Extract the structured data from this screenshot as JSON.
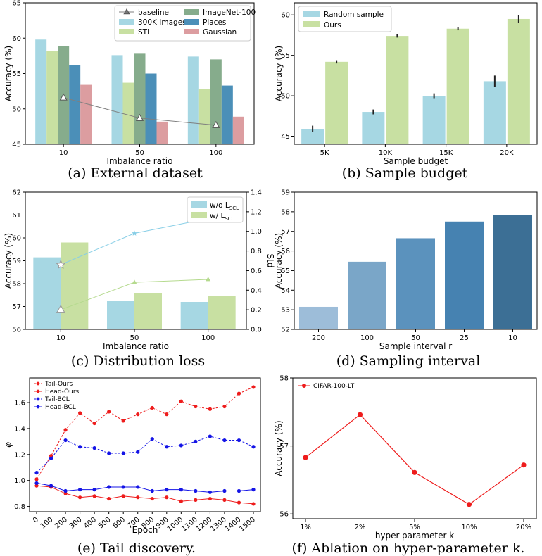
{
  "figure": {
    "captions": [
      "(a) External dataset",
      "(b) Sample budget",
      "(c) Distribution loss",
      "(d) Sampling interval",
      "(e) Tail discovery.",
      "(f) Ablation on hyper-parameter k."
    ]
  },
  "chart_data": [
    {
      "id": "a",
      "type": "bar",
      "xlabel": "Imbalance ratio",
      "ylabel": "Accuracy (%)",
      "categories": [
        "10",
        "50",
        "100"
      ],
      "ylim": [
        45,
        65
      ],
      "yticks": [
        45,
        50,
        55,
        60,
        65
      ],
      "legend_position": "top-right",
      "series": [
        {
          "name": "300K Images",
          "color": "#a6d7e3",
          "values": [
            59.8,
            57.6,
            57.4
          ]
        },
        {
          "name": "STL",
          "color": "#c8e0a2",
          "values": [
            58.2,
            53.7,
            52.8
          ]
        },
        {
          "name": "ImageNet-100",
          "color": "#86ac8c",
          "values": [
            58.9,
            57.8,
            57.0
          ]
        },
        {
          "name": "Places",
          "color": "#4b8fb8",
          "values": [
            56.2,
            55.0,
            53.3
          ]
        },
        {
          "name": "Gaussian",
          "color": "#dc9da0",
          "values": [
            53.4,
            48.2,
            48.9
          ]
        }
      ],
      "line": {
        "name": "baseline",
        "color": "#7f7f7f",
        "marker": "triangle",
        "values": [
          51.6,
          48.7,
          47.7
        ]
      }
    },
    {
      "id": "b",
      "type": "bar",
      "xlabel": "Sample budget",
      "ylabel": "Accuracy (%)",
      "categories": [
        "5K",
        "10K",
        "15K",
        "20K"
      ],
      "ylim": [
        44,
        61.5
      ],
      "yticks": [
        45,
        50,
        55,
        60
      ],
      "legend_position": "top-left",
      "series": [
        {
          "name": "Random sample",
          "color": "#a6d7e3",
          "values": [
            45.9,
            48.0,
            50.0,
            51.8
          ],
          "errors": [
            0.4,
            0.3,
            0.3,
            0.7
          ]
        },
        {
          "name": "Ours",
          "color": "#c8e0a2",
          "values": [
            54.2,
            57.4,
            58.3,
            59.5
          ],
          "errors": [
            0.2,
            0.2,
            0.2,
            0.5
          ]
        }
      ]
    },
    {
      "id": "c",
      "type": "bar",
      "xlabel": "Imbalance ratio",
      "ylabel": "Accuracy (%)",
      "y2label": "Std",
      "categories": [
        "10",
        "50",
        "100"
      ],
      "ylim": [
        56,
        62
      ],
      "yticks": [
        56,
        57,
        58,
        59,
        60,
        61,
        62
      ],
      "y2lim": [
        0,
        1.4
      ],
      "y2ticks": [
        "0.0",
        "0.2",
        "0.4",
        "0.6",
        "0.8",
        "1.0",
        "1.2",
        "1.4"
      ],
      "legend_position": "top-right",
      "series": [
        {
          "name": "w/o L",
          "subscript": "SCL",
          "color": "#a6d7e3",
          "values": [
            59.15,
            57.25,
            57.2
          ]
        },
        {
          "name": "w/ L",
          "subscript": "SCL",
          "color": "#c8e0a2",
          "values": [
            59.8,
            57.6,
            57.45
          ]
        }
      ],
      "lines": [
        {
          "color": "#87cee6",
          "marker": "star",
          "values": [
            0.66,
            0.98,
            1.13
          ]
        },
        {
          "color": "#b5da8e",
          "marker": "triangle",
          "values": [
            0.2,
            0.48,
            0.51
          ]
        }
      ]
    },
    {
      "id": "d",
      "type": "bar",
      "xlabel": "Sample interval r",
      "ylabel": "Accuracy (%)",
      "categories": [
        "200",
        "100",
        "50",
        "25",
        "10"
      ],
      "values": [
        53.15,
        55.45,
        56.65,
        57.5,
        57.85
      ],
      "colors": [
        "#9dbdd9",
        "#7aa6c8",
        "#5b92bd",
        "#4682b1",
        "#3c6f95"
      ],
      "ylim": [
        52,
        59
      ],
      "yticks": [
        52,
        53,
        54,
        55,
        56,
        57,
        58,
        59
      ]
    },
    {
      "id": "e",
      "type": "line",
      "xlabel": "Epoch",
      "ylabel": "φ",
      "x": [
        "0",
        "100",
        "200",
        "300",
        "400",
        "500",
        "600",
        "700",
        "800",
        "900",
        "1000",
        "1100",
        "1200",
        "1300",
        "1400",
        "1500"
      ],
      "ylim": [
        0.76,
        1.79
      ],
      "yticks": [
        "0.8",
        "1.0",
        "1.2",
        "1.4",
        "1.6"
      ],
      "legend_position": "top-left",
      "series": [
        {
          "name": "Tail-Ours",
          "color": "#ee1c1c",
          "dashed": true,
          "values": [
            1.01,
            1.19,
            1.39,
            1.52,
            1.44,
            1.53,
            1.46,
            1.51,
            1.56,
            1.51,
            1.61,
            1.57,
            1.55,
            1.57,
            1.67,
            1.72
          ]
        },
        {
          "name": "Head-Ours",
          "color": "#ee1c1c",
          "dashed": false,
          "values": [
            0.96,
            0.95,
            0.9,
            0.87,
            0.88,
            0.86,
            0.88,
            0.87,
            0.86,
            0.87,
            0.84,
            0.85,
            0.86,
            0.85,
            0.83,
            0.82
          ]
        },
        {
          "name": "Tail-BCL",
          "color": "#1414e6",
          "dashed": true,
          "values": [
            1.06,
            1.17,
            1.31,
            1.26,
            1.25,
            1.21,
            1.21,
            1.22,
            1.32,
            1.26,
            1.27,
            1.3,
            1.34,
            1.31,
            1.31,
            1.26
          ]
        },
        {
          "name": "Head-BCL",
          "color": "#1414e6",
          "dashed": false,
          "values": [
            0.98,
            0.96,
            0.92,
            0.93,
            0.93,
            0.95,
            0.95,
            0.95,
            0.92,
            0.93,
            0.93,
            0.92,
            0.91,
            0.92,
            0.92,
            0.93
          ]
        }
      ]
    },
    {
      "id": "f",
      "type": "line",
      "xlabel": "hyper-parameter k",
      "ylabel": "Accuracy (%)",
      "categories": [
        "1%",
        "2%",
        "5%",
        "10%",
        "20%"
      ],
      "ylim": [
        55.93,
        58.0
      ],
      "yticks": [
        56,
        57,
        58
      ],
      "legend_position": "top-left",
      "series": [
        {
          "name": "CIFAR-100-LT",
          "color": "#ee1c1c",
          "values": [
            56.83,
            57.46,
            56.61,
            56.14,
            56.72
          ]
        }
      ]
    }
  ]
}
